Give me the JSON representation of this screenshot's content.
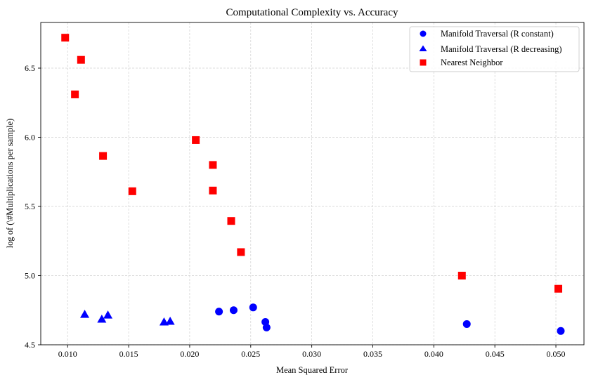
{
  "chart_data": {
    "type": "scatter",
    "title": "Computational Complexity vs. Accuracy",
    "xlabel": "Mean Squared Error",
    "ylabel": "log of (\\#Multiplications per sample)",
    "xlim": [
      0.0078,
      0.0523
    ],
    "ylim": [
      4.5,
      6.83
    ],
    "xticks": [
      0.01,
      0.015,
      0.02,
      0.025,
      0.03,
      0.035,
      0.04,
      0.045,
      0.05
    ],
    "xtick_labels": [
      "0.010",
      "0.015",
      "0.020",
      "0.025",
      "0.030",
      "0.035",
      "0.040",
      "0.045",
      "0.050"
    ],
    "yticks": [
      4.5,
      5.0,
      5.5,
      6.0,
      6.5
    ],
    "ytick_labels": [
      "4.5",
      "5.0",
      "5.5",
      "6.0",
      "6.5"
    ],
    "grid": true,
    "legend_position": "top-right",
    "series": [
      {
        "name": "Manifold Traversal (R constant)",
        "marker": "circle",
        "color": "#0000ff",
        "points": [
          [
            0.0224,
            4.74
          ],
          [
            0.0236,
            4.75
          ],
          [
            0.0252,
            4.77
          ],
          [
            0.0262,
            4.665
          ],
          [
            0.0263,
            4.625
          ],
          [
            0.0427,
            4.65
          ],
          [
            0.0504,
            4.6
          ]
        ]
      },
      {
        "name": "Manifold Traversal (R decreasing)",
        "marker": "triangle",
        "color": "#0000ff",
        "points": [
          [
            0.0114,
            4.72
          ],
          [
            0.0128,
            4.685
          ],
          [
            0.0133,
            4.715
          ],
          [
            0.0179,
            4.665
          ],
          [
            0.0184,
            4.67
          ]
        ]
      },
      {
        "name": "Nearest Neighbor",
        "marker": "square",
        "color": "#ff0000",
        "points": [
          [
            0.0098,
            6.72
          ],
          [
            0.0111,
            6.56
          ],
          [
            0.0106,
            6.31
          ],
          [
            0.0129,
            5.865
          ],
          [
            0.0153,
            5.61
          ],
          [
            0.0205,
            5.98
          ],
          [
            0.0219,
            5.8
          ],
          [
            0.0219,
            5.615
          ],
          [
            0.0234,
            5.395
          ],
          [
            0.0242,
            5.17
          ],
          [
            0.0423,
            5.0
          ],
          [
            0.0502,
            4.905
          ]
        ]
      }
    ]
  }
}
